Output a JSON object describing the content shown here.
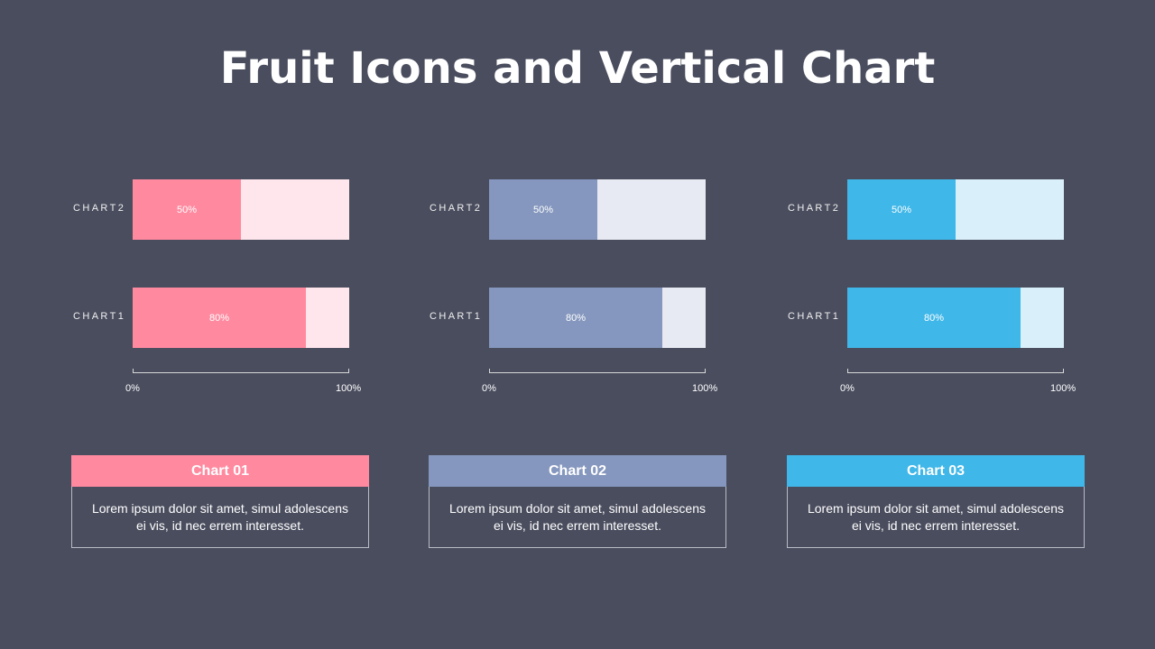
{
  "title": "Fruit Icons and Vertical Chart",
  "chart_data": [
    {
      "type": "bar",
      "orientation": "horizontal",
      "categories": [
        "CHART2",
        "CHART1"
      ],
      "values": [
        50,
        80
      ],
      "value_labels": [
        "50%",
        "80%"
      ],
      "xlim": [
        0,
        100
      ],
      "x_ticks": [
        "0%",
        "100%"
      ],
      "color": "#ff8aa0",
      "track_color": "#ffe6ec"
    },
    {
      "type": "bar",
      "orientation": "horizontal",
      "categories": [
        "CHART2",
        "CHART1"
      ],
      "values": [
        50,
        80
      ],
      "value_labels": [
        "50%",
        "80%"
      ],
      "xlim": [
        0,
        100
      ],
      "x_ticks": [
        "0%",
        "100%"
      ],
      "color": "#8597be",
      "track_color": "#e8eaf3"
    },
    {
      "type": "bar",
      "orientation": "horizontal",
      "categories": [
        "CHART2",
        "CHART1"
      ],
      "values": [
        50,
        80
      ],
      "value_labels": [
        "50%",
        "80%"
      ],
      "xlim": [
        0,
        100
      ],
      "x_ticks": [
        "0%",
        "100%"
      ],
      "color": "#3fb7e8",
      "track_color": "#d9f0fb"
    }
  ],
  "cards": [
    {
      "title": "Chart 01",
      "text": "Lorem ipsum dolor sit amet, simul adolescens ei vis, id nec errem  interesset.",
      "color": "#ff8aa0"
    },
    {
      "title": "Chart 02",
      "text": "Lorem ipsum dolor sit amet, simul adolescens ei vis, id nec errem  interesset.",
      "color": "#8597be"
    },
    {
      "title": "Chart 03",
      "text": "Lorem ipsum dolor sit amet, simul adolescens ei vis, id nec errem  interesset.",
      "color": "#3fb7e8"
    }
  ]
}
